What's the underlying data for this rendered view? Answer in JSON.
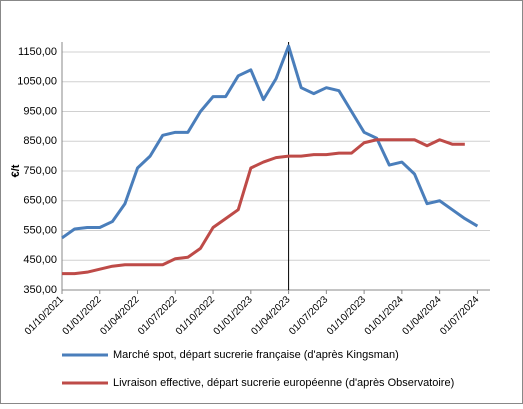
{
  "chart_data": {
    "type": "line",
    "ylabel": "€/t",
    "x": [
      "01/10/2021",
      "01/11/2021",
      "01/12/2021",
      "01/01/2022",
      "01/02/2022",
      "01/03/2022",
      "01/04/2022",
      "01/05/2022",
      "01/06/2022",
      "01/07/2022",
      "01/08/2022",
      "01/09/2022",
      "01/10/2022",
      "01/11/2022",
      "01/12/2022",
      "01/01/2023",
      "01/02/2023",
      "01/03/2023",
      "01/04/2023",
      "01/05/2023",
      "01/06/2023",
      "01/07/2023",
      "01/08/2023",
      "01/09/2023",
      "01/10/2023",
      "01/11/2023",
      "01/12/2023",
      "01/01/2024",
      "01/02/2024",
      "01/03/2024",
      "01/04/2024",
      "01/05/2024",
      "01/06/2024",
      "01/07/2024"
    ],
    "series": [
      {
        "name": "Marché spot, départ sucrerie française (d'après Kingsman)",
        "color": "#4a7ebb",
        "values": [
          525,
          555,
          560,
          560,
          580,
          640,
          760,
          800,
          870,
          880,
          880,
          950,
          1000,
          1000,
          1070,
          1090,
          990,
          1060,
          1170,
          1030,
          1010,
          1030,
          1020,
          950,
          880,
          860,
          770,
          780,
          740,
          640,
          650,
          620,
          590,
          565
        ]
      },
      {
        "name": "Livraison effective, départ sucrerie européenne (d'après Observatoire)",
        "color": "#be4b48",
        "values": [
          405,
          405,
          410,
          420,
          430,
          435,
          435,
          435,
          435,
          455,
          460,
          490,
          560,
          590,
          620,
          760,
          780,
          795,
          800,
          800,
          805,
          805,
          810,
          810,
          845,
          855,
          855,
          855,
          855,
          835,
          855,
          840,
          840,
          null
        ]
      }
    ],
    "xlim": [
      "01/10/2021",
      "01/08/2024"
    ],
    "xticks": [
      "01/10/2021",
      "01/01/2022",
      "01/04/2022",
      "01/07/2022",
      "01/10/2022",
      "01/01/2023",
      "01/04/2023",
      "01/07/2023",
      "01/10/2023",
      "01/01/2024",
      "01/04/2024",
      "01/07/2024"
    ],
    "ylim": [
      350,
      1150
    ],
    "yticks": [
      {
        "value": 350,
        "label": "350,00"
      },
      {
        "value": 450,
        "label": "450,00"
      },
      {
        "value": 550,
        "label": "550,00"
      },
      {
        "value": 650,
        "label": "650,00"
      },
      {
        "value": 750,
        "label": "750,00"
      },
      {
        "value": 850,
        "label": "850,00"
      },
      {
        "value": 950,
        "label": "950,00"
      },
      {
        "value": 1050,
        "label": "1050,00"
      },
      {
        "value": 1150,
        "label": "1150,00"
      }
    ],
    "vline": "01/04/2023",
    "grid": true
  }
}
